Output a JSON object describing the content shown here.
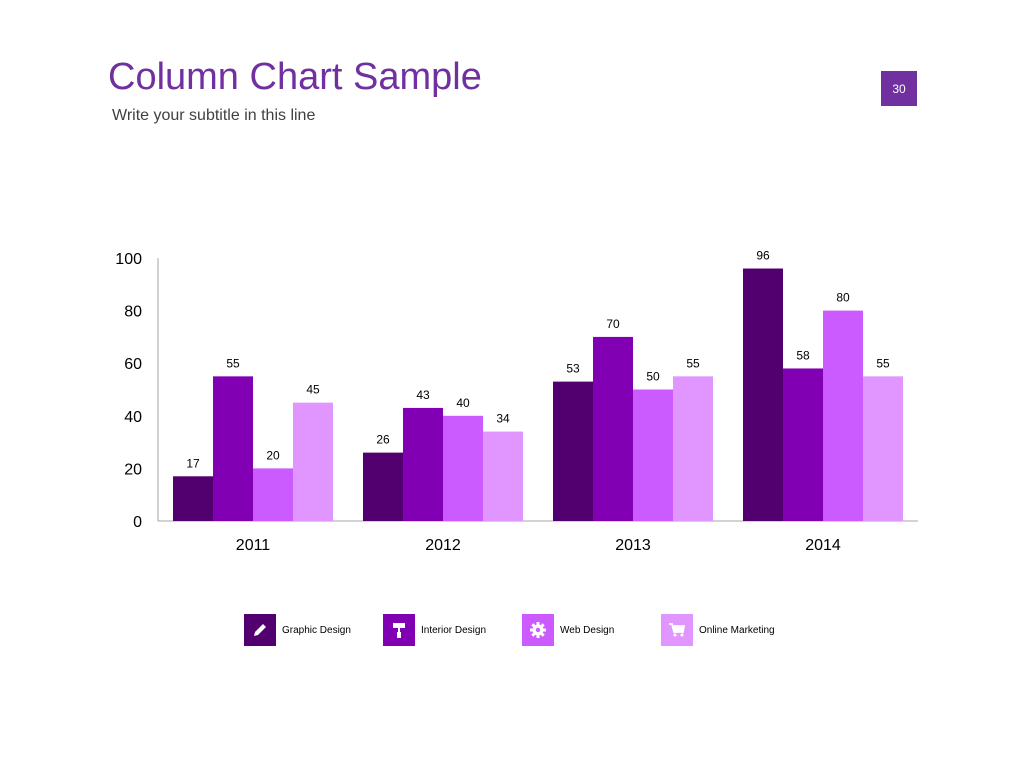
{
  "slide": {
    "title": "Column Chart Sample",
    "subtitle": "Write your subtitle in this line",
    "page_number": "30"
  },
  "colors": {
    "accent": "#7030a0",
    "series": [
      "#520070",
      "#8200b4",
      "#cc5bff",
      "#e196ff"
    ]
  },
  "chart_data": {
    "type": "bar",
    "title": "",
    "xlabel": "",
    "ylabel": "",
    "categories": [
      "2011",
      "2012",
      "2013",
      "2014"
    ],
    "series": [
      {
        "name": "Graphic Design",
        "icon": "pencil-icon",
        "values": [
          17,
          26,
          53,
          96
        ]
      },
      {
        "name": "Interior Design",
        "icon": "paint-roller-icon",
        "values": [
          55,
          43,
          70,
          58
        ]
      },
      {
        "name": "Web Design",
        "icon": "gear-icon",
        "values": [
          20,
          40,
          50,
          80
        ]
      },
      {
        "name": "Online Marketing",
        "icon": "shopping-cart-icon",
        "values": [
          45,
          34,
          55,
          55
        ]
      }
    ],
    "ylim": [
      0,
      100
    ],
    "yticks": [
      0,
      20,
      40,
      60,
      80,
      100
    ],
    "grid": false,
    "legend_position": "bottom"
  }
}
